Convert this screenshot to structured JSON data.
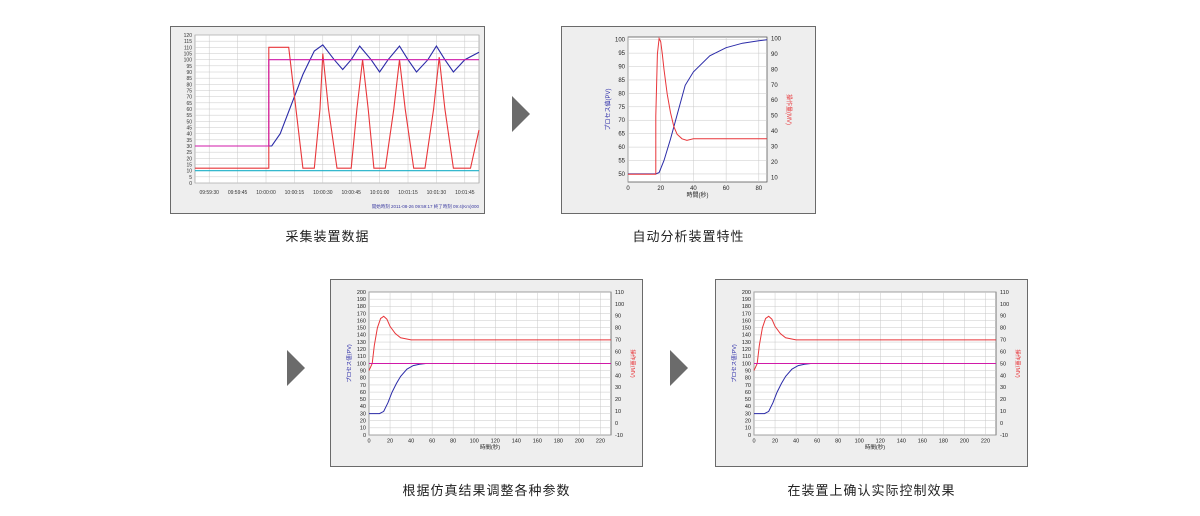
{
  "captions": [
    "采集装置数据",
    "自动分析装置特性",
    "根据仿真结果调整各种参数",
    "在装置上确认实际控制效果"
  ],
  "colors": {
    "pv": "#2b2ba8",
    "mv": "#e8363a",
    "sp": "#d01aa8",
    "cyan": "#1ab0c8",
    "grid": "#c8c8c8",
    "bg": "#eeeeee"
  },
  "chart_data": [
    {
      "type": "line",
      "ylim": [
        0,
        120
      ],
      "yticks": [
        "0",
        "5",
        "10",
        "15",
        "20",
        "25",
        "30",
        "35",
        "40",
        "45",
        "50",
        "55",
        "60",
        "65",
        "70",
        "75",
        "80",
        "85",
        "90",
        "95",
        "100",
        "105",
        "110",
        "115",
        "120"
      ],
      "xticks": [
        "09:59:30",
        "09:59:45",
        "10:00:00",
        "10:00:15",
        "10:00:30",
        "10:00:45",
        "10:01:00",
        "10:01:15",
        "10:01:30",
        "10:01:45"
      ],
      "footer_text": "開始時刻 2011-08-26 09:59:17 終了時刻 09:4(Km)000",
      "series": [
        {
          "key": "pv",
          "values_desc": [
            [
              0,
              30
            ],
            [
              0.27,
              30
            ],
            [
              0.3,
              40
            ],
            [
              0.38,
              88
            ],
            [
              0.42,
              107
            ],
            [
              0.45,
              112
            ],
            [
              0.49,
              100
            ],
            [
              0.52,
              92
            ],
            [
              0.55,
              100
            ],
            [
              0.58,
              111
            ],
            [
              0.62,
              100
            ],
            [
              0.65,
              90
            ],
            [
              0.68,
              100
            ],
            [
              0.72,
              111
            ],
            [
              0.75,
              100
            ],
            [
              0.78,
              90
            ],
            [
              0.82,
              100
            ],
            [
              0.85,
              111
            ],
            [
              0.88,
              100
            ],
            [
              0.91,
              90
            ],
            [
              0.95,
              100
            ],
            [
              1.0,
              106
            ]
          ]
        },
        {
          "key": "mv",
          "values_desc": [
            [
              0,
              12
            ],
            [
              0.25,
              12
            ],
            [
              0.26,
              12
            ],
            [
              0.26,
              110
            ],
            [
              0.33,
              110
            ],
            [
              0.34,
              90
            ],
            [
              0.38,
              12
            ],
            [
              0.42,
              12
            ],
            [
              0.44,
              60
            ],
            [
              0.45,
              105
            ],
            [
              0.47,
              60
            ],
            [
              0.5,
              12
            ],
            [
              0.55,
              12
            ],
            [
              0.57,
              60
            ],
            [
              0.59,
              100
            ],
            [
              0.61,
              60
            ],
            [
              0.63,
              12
            ],
            [
              0.67,
              12
            ],
            [
              0.7,
              60
            ],
            [
              0.72,
              100
            ],
            [
              0.74,
              60
            ],
            [
              0.77,
              12
            ],
            [
              0.81,
              12
            ],
            [
              0.84,
              60
            ],
            [
              0.86,
              102
            ],
            [
              0.88,
              60
            ],
            [
              0.91,
              12
            ],
            [
              0.97,
              12
            ],
            [
              1.0,
              43
            ]
          ]
        },
        {
          "key": "sp",
          "values_desc": [
            [
              0,
              30
            ],
            [
              0.26,
              30
            ],
            [
              0.26,
              100
            ],
            [
              1.0,
              100
            ]
          ]
        },
        {
          "key": "cyan",
          "values_desc": [
            [
              0,
              10
            ],
            [
              1.0,
              10
            ]
          ]
        }
      ]
    },
    {
      "type": "line",
      "xlim": [
        0,
        85
      ],
      "ylim_left": [
        47,
        101
      ],
      "ylim_right": [
        7,
        101
      ],
      "xticks": [
        0,
        20,
        40,
        60,
        80
      ],
      "yticks_left": [
        50,
        55,
        60,
        65,
        70,
        75,
        80,
        85,
        90,
        95,
        100
      ],
      "yticks_right": [
        10,
        20,
        30,
        40,
        50,
        60,
        70,
        80,
        90,
        100
      ],
      "xlabel": "時間(秒)",
      "ylabel_left": "プロセス値(PV)",
      "ylabel_right": "操作量(MV)",
      "series": [
        {
          "key": "pv",
          "axis": "left",
          "x": [
            0,
            17,
            19,
            22,
            26,
            30,
            35,
            40,
            50,
            60,
            70,
            80,
            85
          ],
          "y": [
            50,
            50,
            50.5,
            55,
            63,
            72,
            83,
            88,
            94,
            97,
            98.7,
            99.6,
            100
          ]
        },
        {
          "key": "mv",
          "axis": "right",
          "x": [
            0,
            16,
            17,
            17,
            18,
            19,
            20,
            21,
            22,
            24,
            26,
            28,
            30,
            33,
            36,
            40,
            50,
            60,
            70,
            80,
            85
          ],
          "y": [
            12,
            12,
            12,
            50,
            90,
            100,
            98,
            90,
            80,
            64,
            52,
            43,
            38,
            35,
            34,
            35,
            35,
            35,
            35,
            35,
            35
          ]
        }
      ]
    },
    {
      "type": "line",
      "xlim": [
        0,
        230
      ],
      "ylim_left": [
        0,
        200
      ],
      "ylim_right": [
        -10,
        110
      ],
      "xticks": [
        0,
        20,
        40,
        60,
        80,
        100,
        120,
        140,
        160,
        180,
        200,
        220
      ],
      "yticks_left": [
        0,
        10,
        20,
        30,
        40,
        50,
        60,
        70,
        80,
        90,
        100,
        110,
        120,
        130,
        140,
        150,
        160,
        170,
        180,
        190,
        200
      ],
      "yticks_right": [
        -10,
        0,
        10,
        20,
        30,
        40,
        50,
        60,
        70,
        80,
        90,
        100,
        110
      ],
      "xlabel": "時間(秒)",
      "ylabel_left": "プロセス値(PV)",
      "ylabel_right": "操作量(MV)",
      "series": [
        {
          "key": "pv",
          "axis": "left",
          "x": [
            0,
            10,
            14,
            18,
            22,
            26,
            30,
            36,
            42,
            48,
            54,
            230
          ],
          "y": [
            30,
            30,
            33,
            45,
            60,
            72,
            82,
            92,
            97,
            99,
            100,
            100
          ]
        },
        {
          "key": "mv",
          "axis": "left",
          "x": [
            0,
            3,
            5,
            8,
            11,
            14,
            17,
            20,
            25,
            30,
            40,
            50,
            60,
            100,
            230
          ],
          "y": [
            90,
            100,
            125,
            150,
            163,
            166,
            162,
            152,
            142,
            136,
            133,
            133,
            133,
            133,
            133
          ]
        },
        {
          "key": "sp",
          "axis": "left",
          "x": [
            0,
            230
          ],
          "y": [
            100,
            100
          ]
        }
      ]
    },
    {
      "type": "line",
      "xlim": [
        0,
        230
      ],
      "ylim_left": [
        0,
        200
      ],
      "ylim_right": [
        -10,
        110
      ],
      "xticks": [
        0,
        20,
        40,
        60,
        80,
        100,
        120,
        140,
        160,
        180,
        200,
        220
      ],
      "yticks_left": [
        0,
        10,
        20,
        30,
        40,
        50,
        60,
        70,
        80,
        90,
        100,
        110,
        120,
        130,
        140,
        150,
        160,
        170,
        180,
        190,
        200
      ],
      "yticks_right": [
        -10,
        0,
        10,
        20,
        30,
        40,
        50,
        60,
        70,
        80,
        90,
        100,
        110
      ],
      "xlabel": "時間(秒)",
      "ylabel_left": "プロセス値(PV)",
      "ylabel_right": "操作量(MV)",
      "series": [
        {
          "key": "pv",
          "axis": "left",
          "x": [
            0,
            10,
            14,
            18,
            22,
            26,
            30,
            36,
            42,
            48,
            54,
            230
          ],
          "y": [
            30,
            30,
            33,
            45,
            60,
            72,
            82,
            92,
            97,
            99,
            100,
            100
          ]
        },
        {
          "key": "mv",
          "axis": "left",
          "x": [
            0,
            3,
            5,
            8,
            11,
            14,
            17,
            20,
            25,
            30,
            40,
            50,
            60,
            100,
            230
          ],
          "y": [
            90,
            100,
            125,
            150,
            163,
            166,
            162,
            152,
            142,
            136,
            133,
            133,
            133,
            133,
            133
          ]
        },
        {
          "key": "sp",
          "axis": "left",
          "x": [
            0,
            230
          ],
          "y": [
            100,
            100
          ]
        }
      ]
    }
  ]
}
